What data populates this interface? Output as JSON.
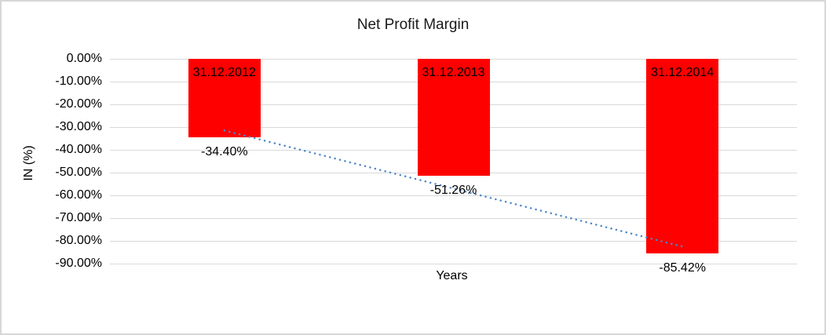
{
  "chart_data": {
    "type": "bar",
    "title": "Net Profit Margin",
    "xlabel": "Years",
    "ylabel": "IN (%)",
    "categories": [
      "31.12.2012",
      "31.12.2013",
      "31.12.2014"
    ],
    "values": [
      -34.4,
      -51.26,
      -85.42
    ],
    "data_labels": [
      "-34.40%",
      "-51.26%",
      "-85.42%"
    ],
    "ylim": [
      -90,
      0
    ],
    "ytick_step": 10,
    "ytick_labels": [
      "0.00%",
      "-10.00%",
      "-20.00%",
      "-30.00%",
      "-40.00%",
      "-50.00%",
      "-60.00%",
      "-70.00%",
      "-80.00%",
      "-90.00%"
    ],
    "grid": true,
    "legend": "none",
    "bar_color": "#ff0000",
    "label_color": "#000000",
    "gridline_color": "#d9d9d9",
    "trendline": {
      "type": "linear",
      "style": "dotted",
      "color": "#4e88c9",
      "start_value": -31.5,
      "end_value": -82.5
    }
  }
}
